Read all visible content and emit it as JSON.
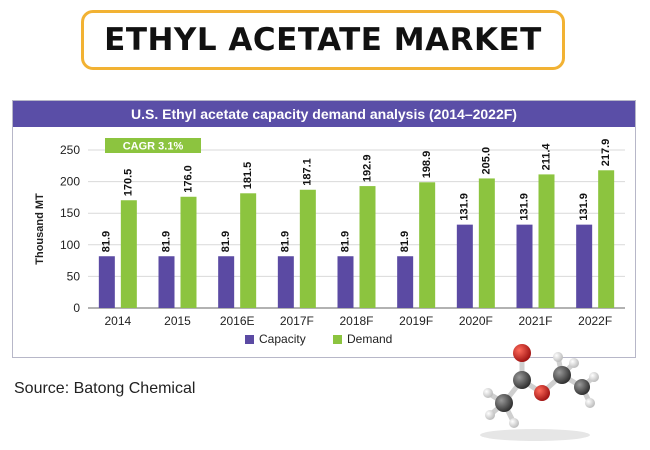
{
  "page_title": "ETHYL ACETATE MARKET",
  "source": "Source: Batong Chemical",
  "colors": {
    "capacity": "#5b4aa3",
    "demand": "#8cc43f",
    "header": "#5a4ea7",
    "title_border": "#f2b233"
  },
  "chart_data": {
    "type": "bar",
    "title": "U.S. Ethyl acetate capacity demand analysis (2014–2022F)",
    "ylabel": "Thousand MT",
    "xlabel": "",
    "ylim": [
      0,
      250
    ],
    "yticks": [
      0,
      50,
      100,
      150,
      200,
      250
    ],
    "grid": true,
    "legend": "bottom",
    "annotation": "CAGR 3.1%",
    "categories": [
      "2014",
      "2015",
      "2016E",
      "2017F",
      "2018F",
      "2019F",
      "2020F",
      "2021F",
      "2022F"
    ],
    "series": [
      {
        "name": "Capacity",
        "values": [
          81.9,
          81.9,
          81.9,
          81.9,
          81.9,
          81.9,
          131.9,
          131.9,
          131.9
        ]
      },
      {
        "name": "Demand",
        "values": [
          170.5,
          176.0,
          181.5,
          187.1,
          192.9,
          198.9,
          205.0,
          211.4,
          217.9
        ]
      }
    ]
  },
  "molecule_icon": "ethyl-acetate-molecule-icon"
}
